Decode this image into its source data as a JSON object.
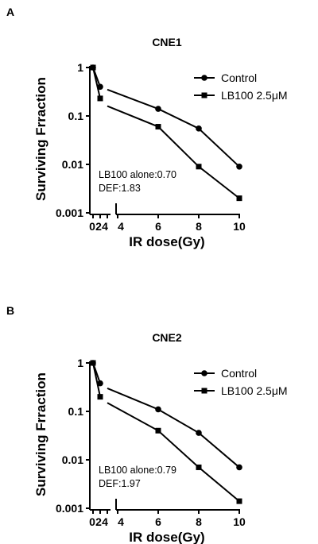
{
  "chart_data": [
    {
      "panel": "A",
      "type": "line",
      "title": "CNE1",
      "xlabel": "IR dose(Gy)",
      "ylabel": "Surviving Frraction",
      "yscale": "log",
      "ylim": [
        0.001,
        1
      ],
      "x_ticks": [
        "0",
        "2",
        "4",
        "4",
        "6",
        "8",
        "10"
      ],
      "y_ticks": [
        "0.001",
        "0.01",
        "0.1",
        "1"
      ],
      "legend_position": "top-right",
      "series": [
        {
          "name": "Control",
          "marker": "circle",
          "x": [
            0,
            2,
            4,
            6,
            8,
            10
          ],
          "y": [
            1,
            0.4,
            0.35,
            0.14,
            0.055,
            0.009
          ]
        },
        {
          "name": "LB100 2.5μM",
          "marker": "square",
          "x": [
            0,
            2,
            4,
            6,
            8,
            10
          ],
          "y": [
            1,
            0.23,
            0.16,
            0.06,
            0.009,
            0.002
          ]
        }
      ],
      "annotations": [
        "LB100 alone:0.70",
        "DEF:1.83"
      ]
    },
    {
      "panel": "B",
      "type": "line",
      "title": "CNE2",
      "xlabel": "IR dose(Gy)",
      "ylabel": "Surviving Frraction",
      "yscale": "log",
      "ylim": [
        0.001,
        1
      ],
      "x_ticks": [
        "0",
        "2",
        "4",
        "4",
        "6",
        "8",
        "10"
      ],
      "y_ticks": [
        "0.001",
        "0.01",
        "0.1",
        "1"
      ],
      "legend_position": "top-right",
      "series": [
        {
          "name": "Control",
          "marker": "circle",
          "x": [
            0,
            2,
            4,
            6,
            8,
            10
          ],
          "y": [
            1,
            0.38,
            0.3,
            0.11,
            0.036,
            0.007
          ]
        },
        {
          "name": "LB100 2.5μM",
          "marker": "square",
          "x": [
            0,
            2,
            4,
            6,
            8,
            10
          ],
          "y": [
            1,
            0.2,
            0.15,
            0.04,
            0.007,
            0.0014
          ]
        }
      ],
      "annotations": [
        "LB100 alone:0.79",
        "DEF:1.97"
      ]
    }
  ]
}
